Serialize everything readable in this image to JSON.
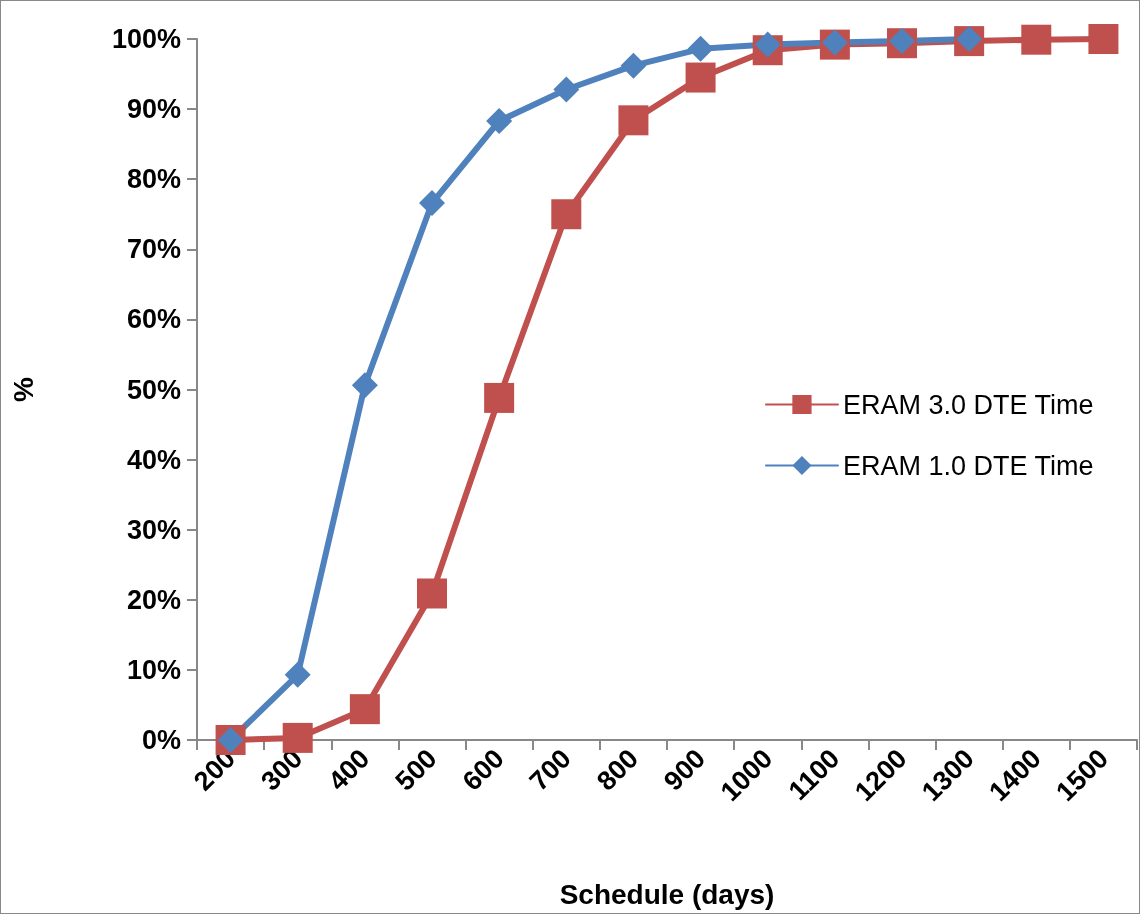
{
  "chart_data": {
    "type": "line",
    "xlabel": "Schedule (days)",
    "ylabel": "%",
    "categories": [
      "200",
      "300",
      "400",
      "500",
      "600",
      "700",
      "800",
      "900",
      "1000",
      "1100",
      "1200",
      "1300",
      "1400",
      "1500"
    ],
    "series": [
      {
        "name": "ERAM 3.0 DTE Time",
        "color": "#c0504d",
        "marker": "square",
        "values": [
          0,
          0.3,
          4.4,
          20.9,
          48.8,
          75,
          88.4,
          94.5,
          98.4,
          99.2,
          99.4,
          99.7,
          99.9,
          100
        ]
      },
      {
        "name": "ERAM 1.0 DTE Time",
        "color": "#4f81bd",
        "marker": "diamond",
        "values": [
          0,
          9.3,
          50.6,
          76.6,
          88.3,
          92.8,
          96.2,
          98.6,
          99.2,
          99.5,
          99.7,
          100,
          null,
          null
        ]
      }
    ],
    "ylim": [
      0,
      100
    ],
    "yticks": [
      {
        "value": 0,
        "label": "0%"
      },
      {
        "value": 10,
        "label": "10%"
      },
      {
        "value": 20,
        "label": "20%"
      },
      {
        "value": 30,
        "label": "30%"
      },
      {
        "value": 40,
        "label": "40%"
      },
      {
        "value": 50,
        "label": "50%"
      },
      {
        "value": 60,
        "label": "60%"
      },
      {
        "value": 70,
        "label": "70%"
      },
      {
        "value": 80,
        "label": "80%"
      },
      {
        "value": 90,
        "label": "90%"
      },
      {
        "value": 100,
        "label": "100%"
      }
    ],
    "grid": false,
    "legend": "right",
    "line_style": "solid"
  }
}
